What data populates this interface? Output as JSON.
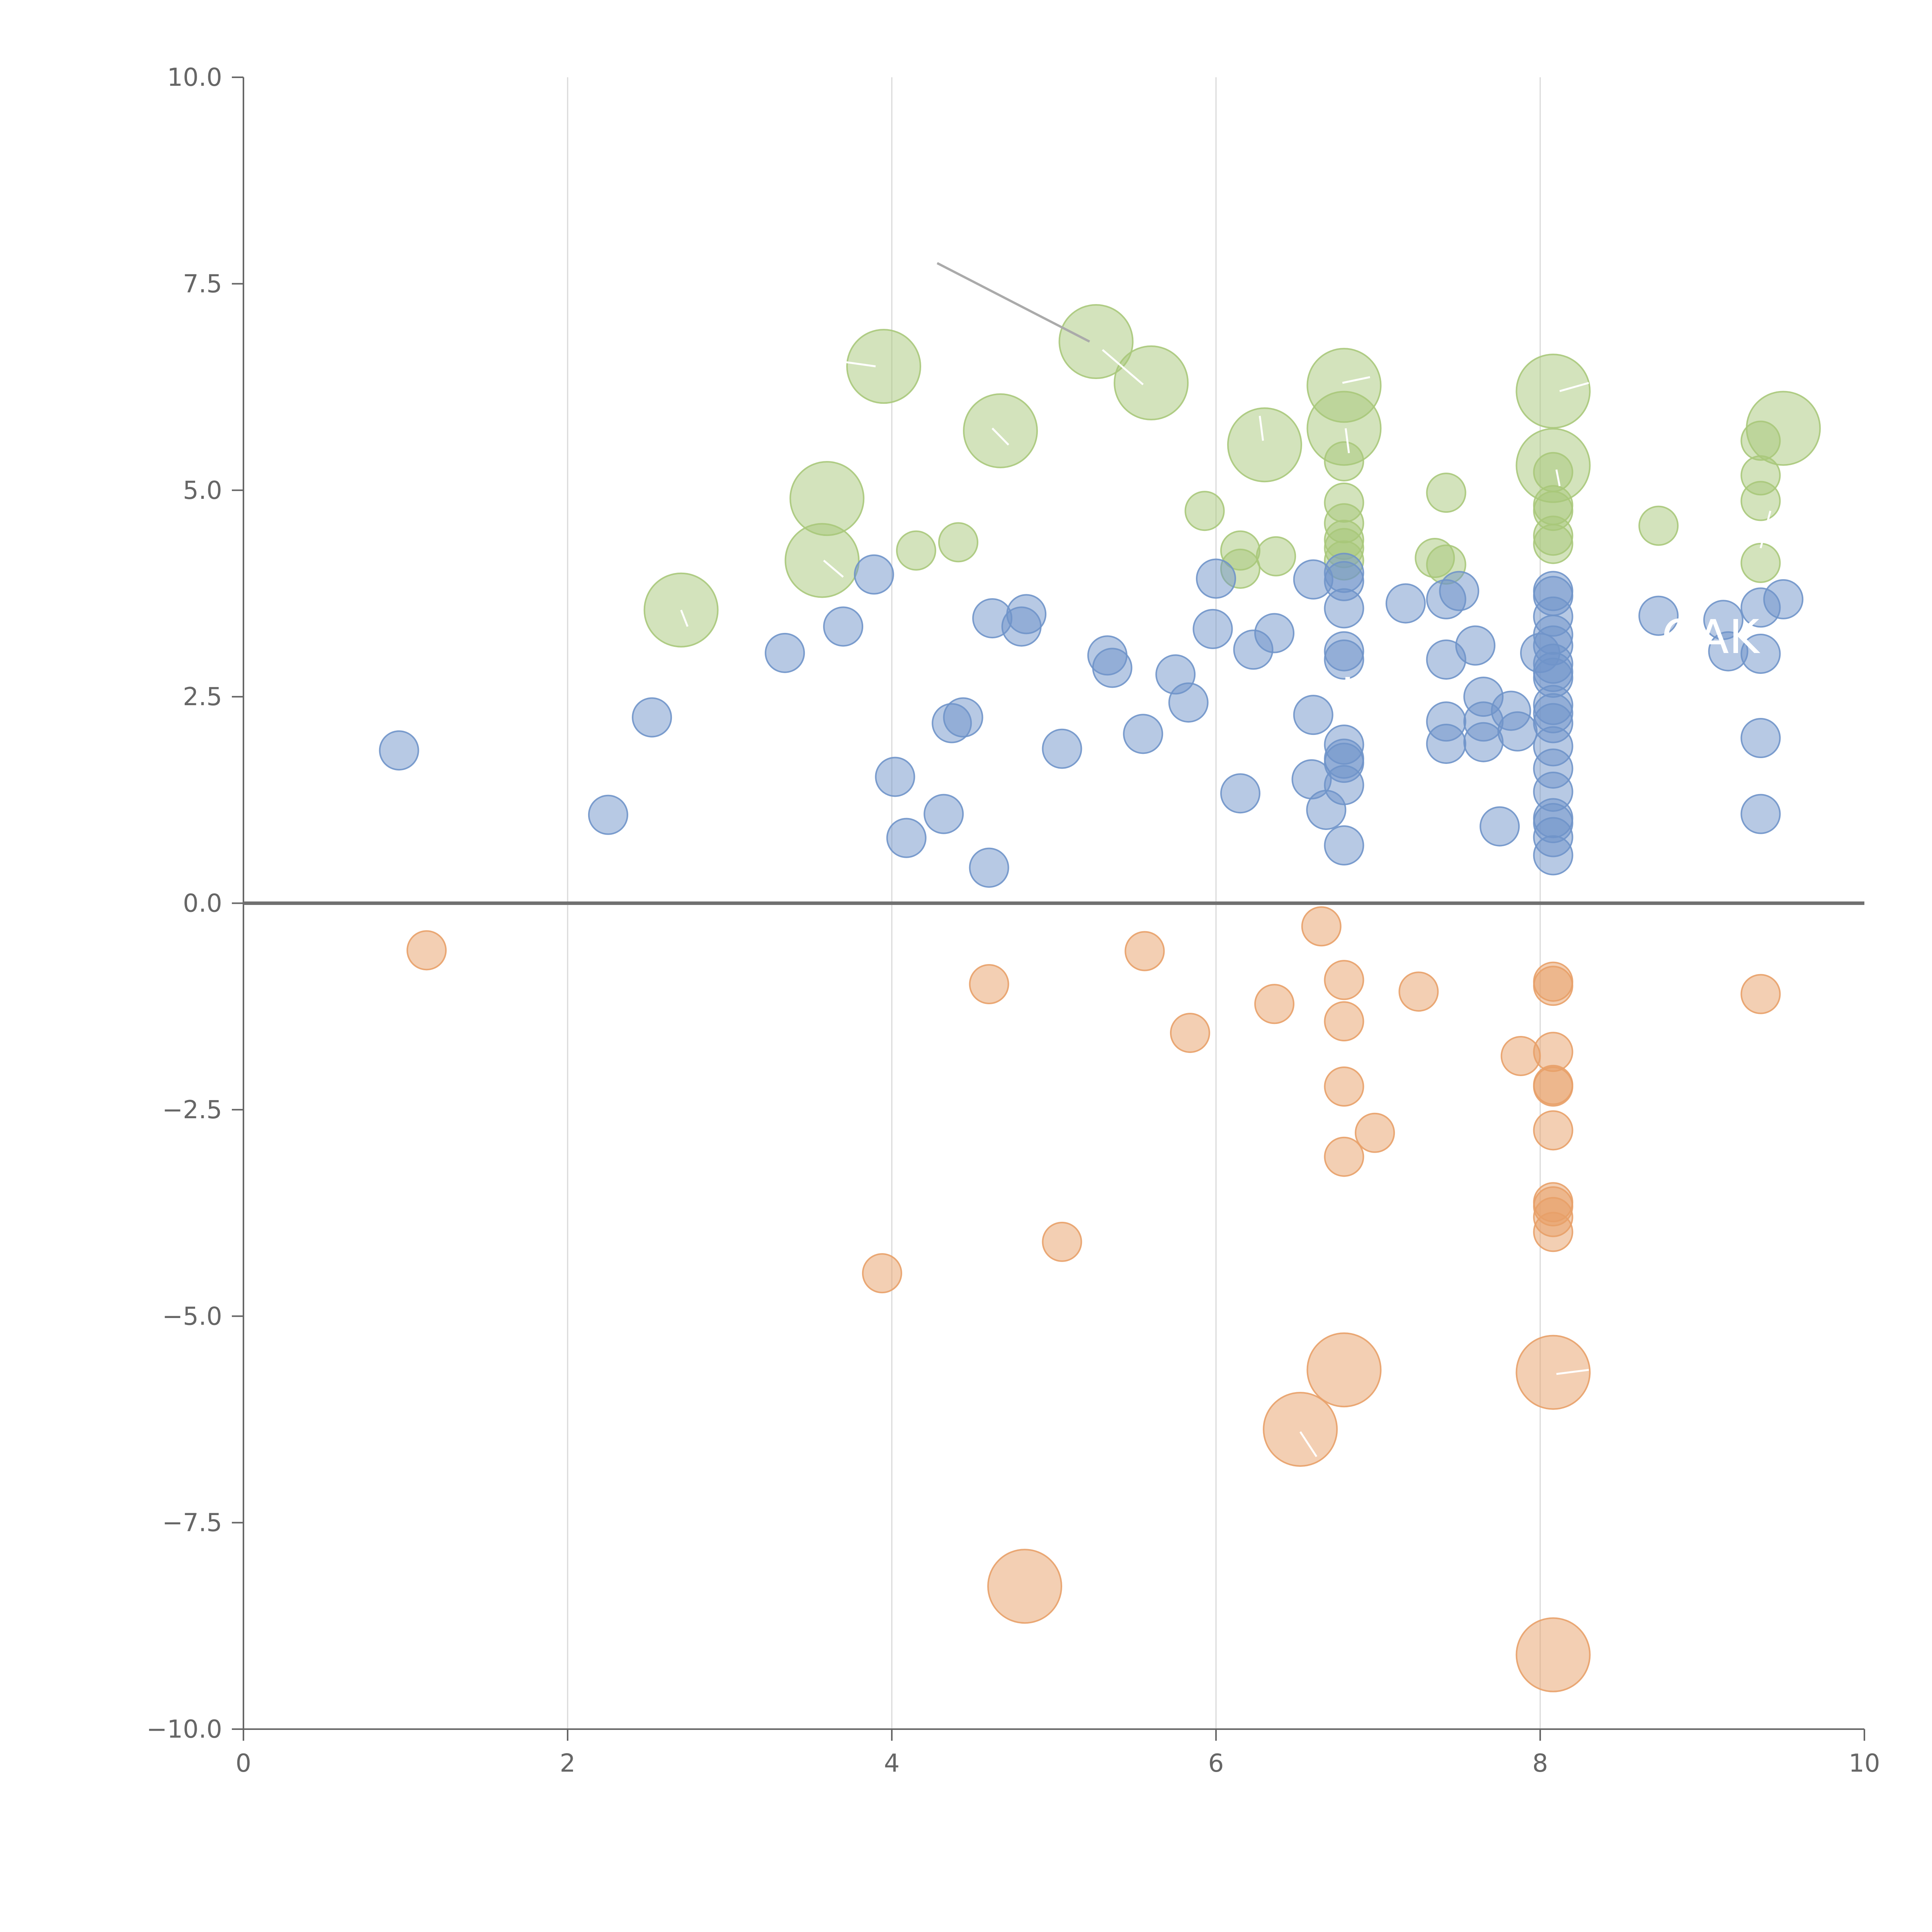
{
  "chart_data": {
    "type": "scatter",
    "title": "",
    "xlabel": "",
    "ylabel": "",
    "xlim": [
      0,
      10
    ],
    "ylim": [
      -10,
      10
    ],
    "x_ticks": [
      0,
      2,
      4,
      6,
      8,
      10
    ],
    "x_tick_labels": [
      "0",
      "2",
      "4",
      "6",
      "8",
      "10"
    ],
    "y_ticks": [
      10,
      7.5,
      5,
      2.5,
      0,
      -2.5,
      -5,
      -7.5,
      -10
    ],
    "y_tick_labels": [
      "10.0",
      "7.5",
      "5.0",
      "2.5",
      "0.0",
      "−2.5",
      "−5.0",
      "−7.5",
      "−10.0"
    ],
    "vertical_grid_at": [
      2,
      4,
      6,
      8
    ],
    "zero_line": 0,
    "colors": {
      "blue": "#6f93c9",
      "green": "#a8c87a",
      "orange": "#e8a068"
    },
    "annotations": [
      "OAK",
      "K"
    ],
    "series": [
      {
        "name": "green",
        "color": "#a8c87a",
        "points": [
          [
            5.26,
            6.8,
            2
          ],
          [
            3.95,
            6.5,
            2
          ],
          [
            5.6,
            6.3,
            2
          ],
          [
            4.67,
            5.72,
            2
          ],
          [
            6.3,
            5.55,
            2
          ],
          [
            6.79,
            6.27,
            2
          ],
          [
            6.79,
            5.75,
            2
          ],
          [
            8.08,
            6.2,
            2
          ],
          [
            8.08,
            5.3,
            2
          ],
          [
            9.5,
            5.75,
            2
          ],
          [
            3.6,
            4.9,
            2
          ],
          [
            3.57,
            4.15,
            2
          ],
          [
            2.7,
            3.55,
            2
          ],
          [
            4.15,
            4.27,
            1
          ],
          [
            4.41,
            4.37,
            1
          ],
          [
            5.93,
            4.75,
            1
          ],
          [
            6.15,
            4.27,
            1
          ],
          [
            6.15,
            4.05,
            1
          ],
          [
            6.37,
            4.2,
            1
          ],
          [
            6.79,
            5.35,
            1
          ],
          [
            6.79,
            4.85,
            1
          ],
          [
            6.79,
            4.6,
            1
          ],
          [
            6.79,
            4.4,
            1
          ],
          [
            6.79,
            4.3,
            1
          ],
          [
            6.79,
            4.15,
            1
          ],
          [
            7.42,
            4.97,
            1
          ],
          [
            7.35,
            4.18,
            1
          ],
          [
            7.42,
            4.1,
            1
          ],
          [
            8.08,
            5.22,
            1
          ],
          [
            8.08,
            4.82,
            1
          ],
          [
            8.08,
            4.75,
            1
          ],
          [
            8.08,
            4.45,
            1
          ],
          [
            8.08,
            4.35,
            1
          ],
          [
            8.73,
            4.57,
            1
          ],
          [
            9.36,
            5.6,
            1
          ],
          [
            9.36,
            5.18,
            1
          ],
          [
            9.36,
            4.87,
            1
          ],
          [
            9.36,
            4.12,
            1
          ]
        ]
      },
      {
        "name": "blue",
        "color": "#6f93c9",
        "points": [
          [
            0.96,
            1.85,
            1
          ],
          [
            2.25,
            1.07,
            1
          ],
          [
            2.52,
            2.25,
            1
          ],
          [
            3.34,
            3.03,
            1
          ],
          [
            3.7,
            3.35,
            1
          ],
          [
            3.89,
            3.98,
            1
          ],
          [
            4.02,
            1.53,
            1
          ],
          [
            4.09,
            0.79,
            1
          ],
          [
            4.32,
            1.08,
            1
          ],
          [
            4.37,
            2.18,
            1
          ],
          [
            4.44,
            2.25,
            1
          ],
          [
            4.6,
            0.43,
            1
          ],
          [
            4.62,
            3.45,
            1
          ],
          [
            4.8,
            3.35,
            1
          ],
          [
            4.83,
            3.5,
            1
          ],
          [
            5.05,
            1.87,
            1
          ],
          [
            5.33,
            3.0,
            1
          ],
          [
            5.36,
            2.85,
            1
          ],
          [
            5.55,
            2.05,
            1
          ],
          [
            5.75,
            2.77,
            1
          ],
          [
            5.83,
            2.43,
            1
          ],
          [
            5.98,
            3.32,
            1
          ],
          [
            6.0,
            3.93,
            1
          ],
          [
            6.15,
            1.33,
            1
          ],
          [
            6.23,
            3.07,
            1
          ],
          [
            6.36,
            3.27,
            1
          ],
          [
            6.59,
            1.5,
            1
          ],
          [
            6.6,
            2.28,
            1
          ],
          [
            6.6,
            3.92,
            1
          ],
          [
            6.68,
            1.13,
            1
          ],
          [
            6.79,
            4.0,
            1
          ],
          [
            6.79,
            3.9,
            1
          ],
          [
            6.79,
            3.57,
            1
          ],
          [
            6.79,
            3.05,
            1
          ],
          [
            6.79,
            2.95,
            1
          ],
          [
            6.79,
            1.92,
            1
          ],
          [
            6.79,
            1.75,
            1
          ],
          [
            6.79,
            1.7,
            1
          ],
          [
            6.79,
            1.43,
            1
          ],
          [
            6.79,
            0.7,
            1
          ],
          [
            7.17,
            3.63,
            1
          ],
          [
            7.42,
            3.68,
            1
          ],
          [
            7.42,
            2.95,
            1
          ],
          [
            7.42,
            2.2,
            1
          ],
          [
            7.42,
            1.93,
            1
          ],
          [
            7.5,
            3.78,
            1
          ],
          [
            7.6,
            3.12,
            1
          ],
          [
            7.65,
            2.5,
            1
          ],
          [
            7.65,
            2.2,
            1
          ],
          [
            7.65,
            1.95,
            1
          ],
          [
            7.75,
            0.93,
            1
          ],
          [
            7.82,
            2.33,
            1
          ],
          [
            7.86,
            2.08,
            1
          ],
          [
            8.0,
            3.03,
            1
          ],
          [
            8.08,
            3.78,
            1
          ],
          [
            8.08,
            3.72,
            1
          ],
          [
            8.08,
            3.47,
            1
          ],
          [
            8.08,
            3.25,
            1
          ],
          [
            8.08,
            3.12,
            1
          ],
          [
            8.08,
            2.9,
            1
          ],
          [
            8.08,
            2.8,
            1
          ],
          [
            8.08,
            2.73,
            1
          ],
          [
            8.08,
            2.4,
            1
          ],
          [
            8.08,
            2.3,
            1
          ],
          [
            8.08,
            2.18,
            1
          ],
          [
            8.08,
            1.9,
            1
          ],
          [
            8.08,
            1.63,
            1
          ],
          [
            8.08,
            1.35,
            1
          ],
          [
            8.08,
            1.03,
            1
          ],
          [
            8.08,
            0.97,
            1
          ],
          [
            8.08,
            0.8,
            1
          ],
          [
            8.08,
            0.58,
            1
          ],
          [
            8.73,
            3.48,
            1
          ],
          [
            9.13,
            3.43,
            1
          ],
          [
            9.16,
            3.05,
            1
          ],
          [
            9.36,
            3.58,
            1
          ],
          [
            9.36,
            3.02,
            1
          ],
          [
            9.36,
            2.0,
            1
          ],
          [
            9.36,
            1.08,
            1
          ],
          [
            9.5,
            3.68,
            1
          ]
        ]
      },
      {
        "name": "orange",
        "color": "#e8a068",
        "points": [
          [
            1.13,
            -0.57,
            1
          ],
          [
            3.94,
            -4.48,
            1
          ],
          [
            4.6,
            -0.98,
            1
          ],
          [
            5.05,
            -4.1,
            1
          ],
          [
            5.56,
            -0.58,
            1
          ],
          [
            5.84,
            -1.57,
            1
          ],
          [
            6.36,
            -1.22,
            1
          ],
          [
            6.65,
            -0.28,
            1
          ],
          [
            6.79,
            -0.93,
            1
          ],
          [
            6.79,
            -1.43,
            1
          ],
          [
            6.79,
            -2.22,
            1
          ],
          [
            6.79,
            -3.07,
            1
          ],
          [
            6.98,
            -2.78,
            1
          ],
          [
            7.25,
            -1.07,
            1
          ],
          [
            7.88,
            -1.85,
            1
          ],
          [
            8.08,
            -0.95,
            1
          ],
          [
            8.08,
            -1.0,
            1
          ],
          [
            8.08,
            -1.8,
            1
          ],
          [
            8.08,
            -2.2,
            1
          ],
          [
            8.08,
            -2.22,
            1
          ],
          [
            8.08,
            -2.75,
            1
          ],
          [
            8.08,
            -3.62,
            1
          ],
          [
            8.08,
            -3.67,
            1
          ],
          [
            8.08,
            -3.8,
            1
          ],
          [
            8.08,
            -3.98,
            1
          ],
          [
            9.36,
            -1.1,
            1
          ],
          [
            4.82,
            -8.27,
            2
          ],
          [
            6.52,
            -6.37,
            2
          ],
          [
            6.79,
            -5.65,
            2
          ],
          [
            8.08,
            -5.68,
            2
          ],
          [
            8.08,
            -9.1,
            2
          ]
        ]
      }
    ]
  }
}
